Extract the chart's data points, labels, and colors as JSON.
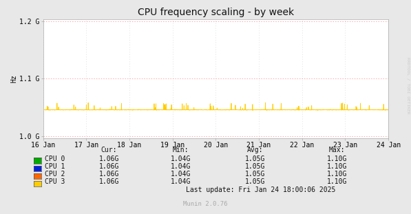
{
  "title": "CPU frequency scaling - by week",
  "ylabel": "Hz",
  "background_color": "#e8e8e8",
  "plot_bg_color": "#ffffff",
  "grid_color": "#cccccc",
  "border_color": "#aaaaaa",
  "x_start": 0,
  "x_end": 691200,
  "x_ticks": [
    0,
    86400,
    172800,
    259200,
    345600,
    432000,
    518400,
    604800,
    691200
  ],
  "x_tick_labels": [
    "16 Jan",
    "17 Jan",
    "18 Jan",
    "19 Jan",
    "20 Jan",
    "21 Jan",
    "22 Jan",
    "23 Jan",
    "24 Jan"
  ],
  "y_min": 1000000000.0,
  "y_max": 1200000000.0,
  "y_ticks": [
    1000000000.0,
    1100000000.0,
    1200000000.0
  ],
  "y_tick_labels": [
    "1.0 G",
    "1.1 G",
    "1.2 G"
  ],
  "base_freq": 1046000000.0,
  "line_color": "#ffcc00",
  "limit_color": "#ff8080",
  "grid_line_color": "#e0e0e0",
  "cpu_colors": [
    "#00aa00",
    "#0022dd",
    "#ff6600",
    "#ffcc00"
  ],
  "cpu_labels": [
    "CPU 0",
    "CPU 1",
    "CPU 2",
    "CPU 3"
  ],
  "legend_headers": [
    "Cur:",
    "Min:",
    "Avg:",
    "Max:"
  ],
  "legend_values": [
    [
      "1.06G",
      "1.04G",
      "1.05G",
      "1.10G"
    ],
    [
      "1.06G",
      "1.04G",
      "1.05G",
      "1.10G"
    ],
    [
      "1.06G",
      "1.04G",
      "1.05G",
      "1.10G"
    ],
    [
      "1.06G",
      "1.04G",
      "1.05G",
      "1.10G"
    ]
  ],
  "last_update": "Last update: Fri Jan 24 18:00:06 2025",
  "munin_version": "Munin 2.0.76",
  "watermark": "RRDTOOL / TOBI OETIKER",
  "title_fontsize": 10,
  "axis_fontsize": 7,
  "legend_fontsize": 7
}
